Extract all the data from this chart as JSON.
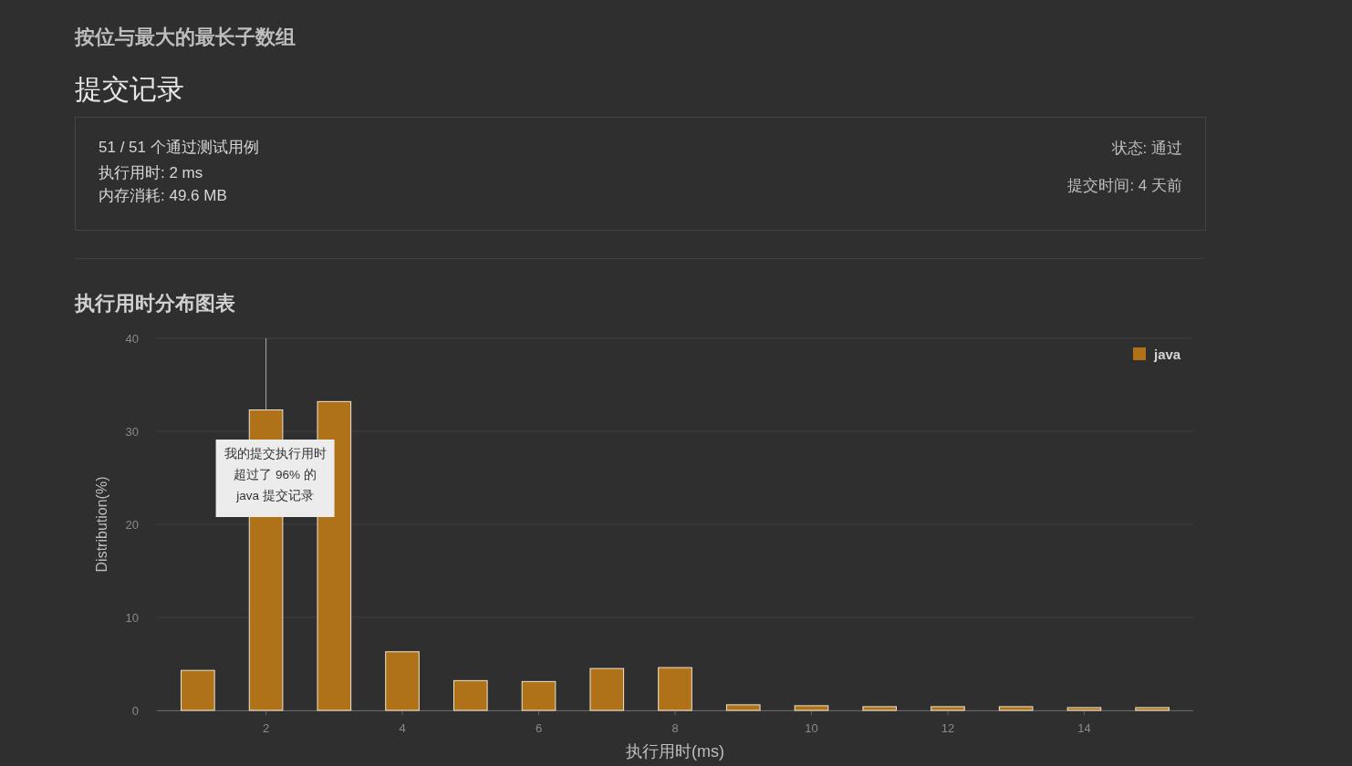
{
  "chart_data": [
    {
      "type": "other",
      "title": "按位与最大的最长子数组",
      "subtitle": "提交记录",
      "annotations": [
        "51 / 51 个通过测试用例",
        "执行用时: 2 ms",
        "内存消耗: 49.6 MB",
        "状态: 通过",
        "提交时间: 4 天前"
      ]
    },
    {
      "type": "bar",
      "title": "执行用时分布图表",
      "xlabel": "执行用时(ms)",
      "ylabel": "Distribution(%)",
      "x": [
        1,
        2,
        3,
        4,
        5,
        6,
        7,
        8,
        9,
        10,
        11,
        12,
        13,
        14,
        15
      ],
      "series": [
        {
          "name": "java",
          "color": "#b07219",
          "values": [
            4.3,
            32.3,
            33.2,
            6.3,
            3.2,
            3.1,
            4.5,
            4.6,
            0.6,
            0.5,
            0.4,
            0.4,
            0.4,
            0.3,
            0.3
          ]
        }
      ],
      "xlim": [
        0.4,
        15.6
      ],
      "xticks": [
        2,
        4,
        6,
        8,
        10,
        12,
        14
      ],
      "ylim": [
        0,
        40
      ],
      "yticks": [
        0,
        10,
        20,
        30,
        40
      ],
      "grid": "y",
      "legend": "top right",
      "ref_lines": [
        {
          "axis": "x",
          "value": 2
        }
      ],
      "annotations": [
        "我的提交执行用时",
        "超过了 96% 的",
        "java 提交记录"
      ]
    }
  ]
}
